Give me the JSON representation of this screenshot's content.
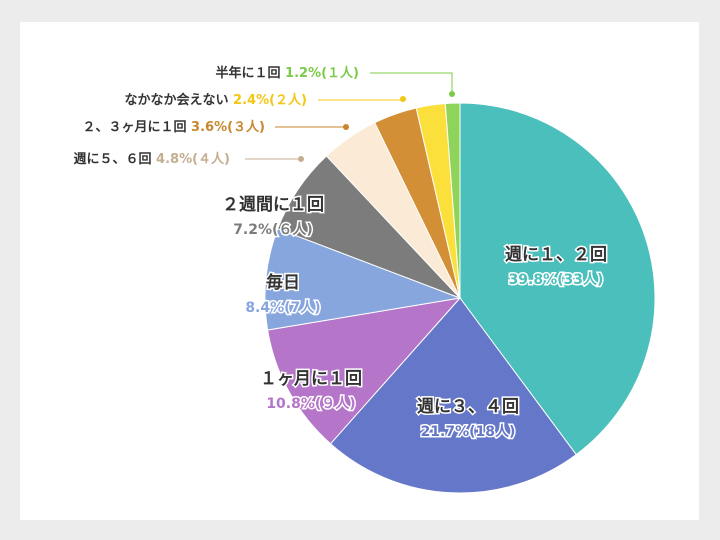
{
  "chart_data": {
    "type": "pie",
    "title": "",
    "start_angle_deg": 0,
    "direction": "clockwise",
    "slices": [
      {
        "name": "週に１、２回",
        "percent": 39.8,
        "count_label": "(33人)",
        "value_label": "39.8%(33人)",
        "color": "#4bbfbb",
        "label_style": "inside"
      },
      {
        "name": "週に３、４回",
        "percent": 21.7,
        "count_label": "(18人)",
        "value_label": "21.7%(18人)",
        "color": "#6577c8",
        "label_style": "inside"
      },
      {
        "name": "１ヶ月に１回",
        "percent": 10.8,
        "count_label": "(９人)",
        "value_label": "10.8%(９人)",
        "color": "#b575c8",
        "label_style": "inside"
      },
      {
        "name": "毎日",
        "percent": 8.4,
        "count_label": "(7人)",
        "value_label": "8.4%(7人)",
        "color": "#87a6de",
        "label_style": "inside"
      },
      {
        "name": "２週間に１回",
        "percent": 7.2,
        "count_label": "(６人)",
        "value_label": "7.2%(６人)",
        "color": "#7c7c7c",
        "label_style": "inside"
      },
      {
        "name": "週に５、６回",
        "percent": 4.8,
        "count_label": "(４人)",
        "value_label": "4.8%(４人)",
        "color": "#fbebd6",
        "text_color": "#c4ae90",
        "label_style": "leader"
      },
      {
        "name": "２、３ヶ月に１回",
        "percent": 3.6,
        "count_label": "(３人)",
        "value_label": "3.6%(３人)",
        "color": "#d38f35",
        "text_color": "#c8862d",
        "label_style": "leader"
      },
      {
        "name": "なかなか会えない",
        "percent": 2.4,
        "count_label": "(２人)",
        "value_label": "2.4%(２人)",
        "color": "#fbe03c",
        "text_color": "#f2c713",
        "label_style": "leader"
      },
      {
        "name": "半年に１回",
        "percent": 1.2,
        "count_label": "(１人)",
        "value_label": "1.2%(１人)",
        "color": "#8fd45a",
        "text_color": "#7ccb48",
        "label_style": "leader"
      }
    ]
  }
}
